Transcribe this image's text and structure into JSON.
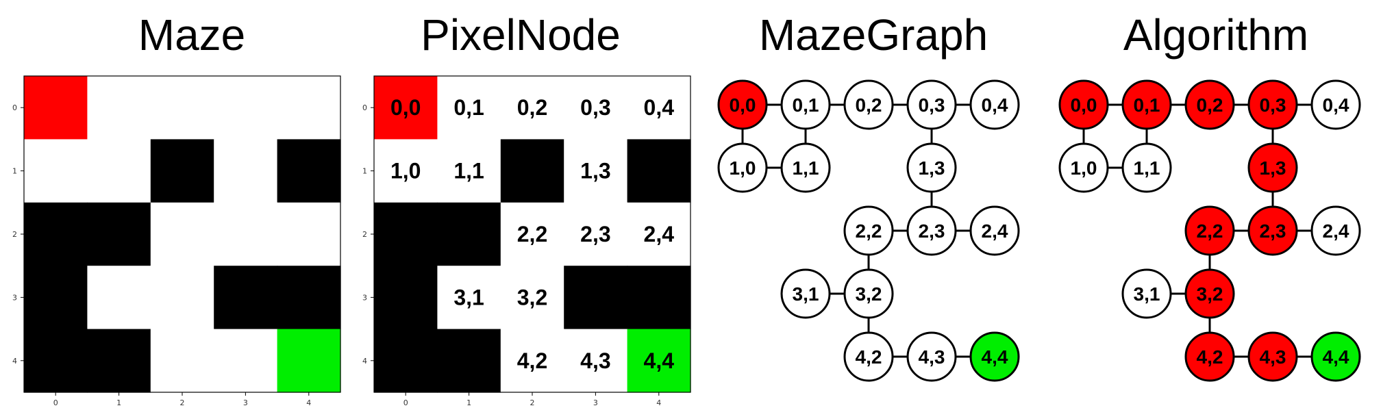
{
  "titles": {
    "maze": "Maze",
    "pixelnode": "PixelNode",
    "mazegraph": "MazeGraph",
    "algorithm": "Algorithm"
  },
  "colors": {
    "wall": "#000000",
    "open": "#ffffff",
    "start": "#ff0000",
    "goal": "#00ee00",
    "path": "#ff0000"
  },
  "maze": {
    "rows": [
      [
        "start",
        "open",
        "open",
        "open",
        "open"
      ],
      [
        "open",
        "open",
        "wall",
        "open",
        "wall"
      ],
      [
        "wall",
        "wall",
        "open",
        "open",
        "open"
      ],
      [
        "wall",
        "open",
        "open",
        "wall",
        "wall"
      ],
      [
        "wall",
        "wall",
        "open",
        "open",
        "goal"
      ]
    ],
    "x_ticks": [
      "0",
      "1",
      "2",
      "3",
      "4"
    ],
    "y_ticks": [
      "0",
      "1",
      "2",
      "3",
      "4"
    ]
  },
  "graph": {
    "nodes": [
      {
        "id": "0,0",
        "r": 0,
        "c": 0,
        "label": "0,0",
        "state": "start"
      },
      {
        "id": "0,1",
        "r": 0,
        "c": 1,
        "label": "0,1",
        "state": "path"
      },
      {
        "id": "0,2",
        "r": 0,
        "c": 2,
        "label": "0,2",
        "state": "path"
      },
      {
        "id": "0,3",
        "r": 0,
        "c": 3,
        "label": "0,3",
        "state": "path"
      },
      {
        "id": "0,4",
        "r": 0,
        "c": 4,
        "label": "0,4",
        "state": "none"
      },
      {
        "id": "1,0",
        "r": 1,
        "c": 0,
        "label": "1,0",
        "state": "none"
      },
      {
        "id": "1,1",
        "r": 1,
        "c": 1,
        "label": "1,1",
        "state": "none"
      },
      {
        "id": "1,3",
        "r": 1,
        "c": 3,
        "label": "1,3",
        "state": "path"
      },
      {
        "id": "2,2",
        "r": 2,
        "c": 2,
        "label": "2,2",
        "state": "path"
      },
      {
        "id": "2,3",
        "r": 2,
        "c": 3,
        "label": "2,3",
        "state": "path"
      },
      {
        "id": "2,4",
        "r": 2,
        "c": 4,
        "label": "2,4",
        "state": "none"
      },
      {
        "id": "3,1",
        "r": 3,
        "c": 1,
        "label": "3,1",
        "state": "none"
      },
      {
        "id": "3,2",
        "r": 3,
        "c": 2,
        "label": "3,2",
        "state": "path"
      },
      {
        "id": "4,2",
        "r": 4,
        "c": 2,
        "label": "4,2",
        "state": "path"
      },
      {
        "id": "4,3",
        "r": 4,
        "c": 3,
        "label": "4,3",
        "state": "path"
      },
      {
        "id": "4,4",
        "r": 4,
        "c": 4,
        "label": "4,4",
        "state": "goal"
      }
    ],
    "edges": [
      [
        "0,0",
        "0,1"
      ],
      [
        "0,1",
        "0,2"
      ],
      [
        "0,2",
        "0,3"
      ],
      [
        "0,3",
        "0,4"
      ],
      [
        "0,0",
        "1,0"
      ],
      [
        "0,1",
        "1,1"
      ],
      [
        "1,0",
        "1,1"
      ],
      [
        "0,3",
        "1,3"
      ],
      [
        "1,3",
        "2,3"
      ],
      [
        "2,2",
        "2,3"
      ],
      [
        "2,3",
        "2,4"
      ],
      [
        "2,2",
        "3,2"
      ],
      [
        "3,1",
        "3,2"
      ],
      [
        "3,2",
        "4,2"
      ],
      [
        "4,2",
        "4,3"
      ],
      [
        "4,3",
        "4,4"
      ]
    ]
  }
}
